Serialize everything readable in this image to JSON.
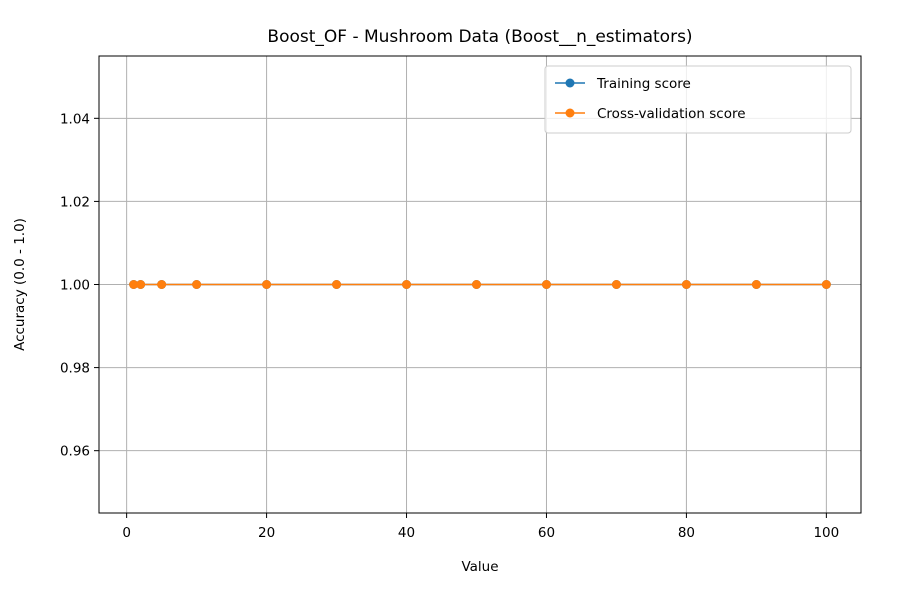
{
  "chart_data": {
    "type": "line",
    "title": "Boost_OF - Mushroom Data (Boost__n_estimators)",
    "xlabel": "Value",
    "ylabel": "Accuracy (0.0 - 1.0)",
    "x": [
      1,
      2,
      5,
      10,
      20,
      30,
      40,
      50,
      60,
      70,
      80,
      90,
      100
    ],
    "series": [
      {
        "name": "Training score",
        "color": "#1f77b4",
        "values": [
          1.0,
          1.0,
          1.0,
          1.0,
          1.0,
          1.0,
          1.0,
          1.0,
          1.0,
          1.0,
          1.0,
          1.0,
          1.0
        ]
      },
      {
        "name": "Cross-validation score",
        "color": "#ff7f0e",
        "values": [
          1.0,
          1.0,
          1.0,
          1.0,
          1.0,
          1.0,
          1.0,
          1.0,
          1.0,
          1.0,
          1.0,
          1.0,
          1.0
        ]
      }
    ],
    "xlim": [
      -3.95,
      104.95
    ],
    "ylim": [
      0.945,
      1.055
    ],
    "xticks": [
      0,
      20,
      40,
      60,
      80,
      100
    ],
    "xtick_labels": [
      "0",
      "20",
      "40",
      "60",
      "80",
      "100"
    ],
    "yticks": [
      0.96,
      0.98,
      1.0,
      1.02,
      1.04
    ],
    "ytick_labels": [
      "0.96",
      "0.98",
      "1.00",
      "1.02",
      "1.04"
    ],
    "grid": true,
    "legend_position": "top-right"
  }
}
